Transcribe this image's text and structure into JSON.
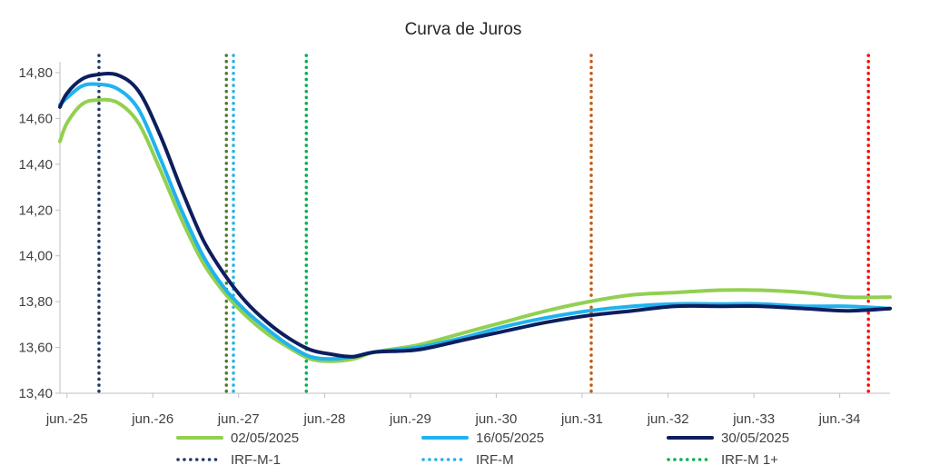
{
  "chart_data": {
    "type": "line",
    "title": "Curva de Juros",
    "xlabel": "",
    "ylabel": "",
    "x_range": [
      "2025-05-02",
      "2035-01-01"
    ],
    "ylim": [
      13.4,
      14.8
    ],
    "y_ticks": [
      "13,40",
      "13,60",
      "13,80",
      "14,00",
      "14,20",
      "14,40",
      "14,60",
      "14,80"
    ],
    "x_ticks": [
      {
        "date": "2025-06-01",
        "label": "jun.-25"
      },
      {
        "date": "2026-06-01",
        "label": "jun.-26"
      },
      {
        "date": "2027-06-01",
        "label": "jun.-27"
      },
      {
        "date": "2028-06-01",
        "label": "jun.-28"
      },
      {
        "date": "2029-06-01",
        "label": "jun.-29"
      },
      {
        "date": "2030-06-01",
        "label": "jun.-30"
      },
      {
        "date": "2031-06-01",
        "label": "jun.-31"
      },
      {
        "date": "2032-06-01",
        "label": "jun.-32"
      },
      {
        "date": "2033-06-01",
        "label": "jun.-33"
      },
      {
        "date": "2034-06-01",
        "label": "jun.-34"
      }
    ],
    "grid": false,
    "legend_position": "bottom",
    "series": [
      {
        "name": "02/05/2025",
        "color": "#92d050",
        "style": "solid",
        "x": [
          "2025-05-02",
          "2025-06-01",
          "2025-08-01",
          "2025-10-01",
          "2026-01-01",
          "2026-04-01",
          "2026-07-01",
          "2026-10-01",
          "2027-01-01",
          "2027-04-01",
          "2027-07-01",
          "2027-10-01",
          "2028-01-01",
          "2028-04-01",
          "2028-07-01",
          "2028-10-01",
          "2029-01-01",
          "2029-07-01",
          "2030-01-01",
          "2030-07-01",
          "2031-01-01",
          "2031-07-01",
          "2032-01-01",
          "2032-07-01",
          "2033-01-01",
          "2033-07-01",
          "2034-01-01",
          "2034-07-01",
          "2035-01-01"
        ],
        "values": [
          14.5,
          14.58,
          14.66,
          14.68,
          14.67,
          14.58,
          14.38,
          14.16,
          13.97,
          13.84,
          13.74,
          13.66,
          13.6,
          13.55,
          13.54,
          13.55,
          13.58,
          13.61,
          13.66,
          13.71,
          13.76,
          13.8,
          13.83,
          13.84,
          13.85,
          13.85,
          13.84,
          13.82,
          13.82
        ]
      },
      {
        "name": "16/05/2025",
        "color": "#1fb3ef",
        "style": "solid",
        "x": [
          "2025-05-02",
          "2025-06-01",
          "2025-08-01",
          "2025-10-01",
          "2026-01-01",
          "2026-04-01",
          "2026-07-01",
          "2026-10-01",
          "2027-01-01",
          "2027-04-01",
          "2027-07-01",
          "2027-10-01",
          "2028-01-01",
          "2028-04-01",
          "2028-07-01",
          "2028-10-01",
          "2029-01-01",
          "2029-07-01",
          "2030-01-01",
          "2030-07-01",
          "2031-01-01",
          "2031-07-01",
          "2032-01-01",
          "2032-07-01",
          "2033-01-01",
          "2033-07-01",
          "2034-01-01",
          "2034-07-01",
          "2035-01-01"
        ],
        "values": [
          14.66,
          14.69,
          14.74,
          14.75,
          14.73,
          14.64,
          14.43,
          14.2,
          14.0,
          13.86,
          13.76,
          13.68,
          13.61,
          13.56,
          13.55,
          13.56,
          13.58,
          13.6,
          13.64,
          13.69,
          13.73,
          13.76,
          13.78,
          13.79,
          13.79,
          13.79,
          13.78,
          13.78,
          13.77
        ]
      },
      {
        "name": "30/05/2025",
        "color": "#0d1e5e",
        "style": "solid",
        "x": [
          "2025-05-02",
          "2025-06-01",
          "2025-08-01",
          "2025-10-01",
          "2026-01-01",
          "2026-04-01",
          "2026-07-01",
          "2026-10-01",
          "2027-01-01",
          "2027-04-01",
          "2027-07-01",
          "2027-10-01",
          "2028-01-01",
          "2028-04-01",
          "2028-07-01",
          "2028-10-01",
          "2029-01-01",
          "2029-07-01",
          "2030-01-01",
          "2030-07-01",
          "2031-01-01",
          "2031-07-01",
          "2032-01-01",
          "2032-07-01",
          "2033-01-01",
          "2033-07-01",
          "2034-01-01",
          "2034-07-01",
          "2035-01-01"
        ],
        "values": [
          14.65,
          14.71,
          14.77,
          14.79,
          14.79,
          14.72,
          14.53,
          14.29,
          14.07,
          13.92,
          13.8,
          13.71,
          13.64,
          13.59,
          13.57,
          13.56,
          13.58,
          13.59,
          13.63,
          13.67,
          13.71,
          13.74,
          13.76,
          13.78,
          13.78,
          13.78,
          13.77,
          13.76,
          13.77
        ]
      }
    ],
    "vertical_markers": [
      {
        "name": "IRF-M-1",
        "date": "2025-10-15",
        "color": "#1f3864",
        "in_legend": true
      },
      {
        "name": "",
        "date": "2027-04-10",
        "color": "#4e7a2e",
        "in_legend": false
      },
      {
        "name": "IRF-M",
        "date": "2027-05-10",
        "color": "#1fb3ef",
        "in_legend": true
      },
      {
        "name": "IRF-M 1+",
        "date": "2028-03-15",
        "color": "#00b050",
        "in_legend": true
      },
      {
        "name": "",
        "date": "2031-07-10",
        "color": "#c55a11",
        "in_legend": false
      },
      {
        "name": "",
        "date": "2034-10-01",
        "color": "#ff0000",
        "in_legend": false
      }
    ],
    "legend": [
      {
        "label": "02/05/2025",
        "color": "#92d050",
        "style": "solid"
      },
      {
        "label": "16/05/2025",
        "color": "#1fb3ef",
        "style": "solid"
      },
      {
        "label": "30/05/2025",
        "color": "#0d1e5e",
        "style": "solid"
      },
      {
        "label": "IRF-M-1",
        "color": "#1f3864",
        "style": "dotted"
      },
      {
        "label": "IRF-M",
        "color": "#1fb3ef",
        "style": "dotted"
      },
      {
        "label": "IRF-M 1+",
        "color": "#00b050",
        "style": "dotted"
      }
    ]
  }
}
